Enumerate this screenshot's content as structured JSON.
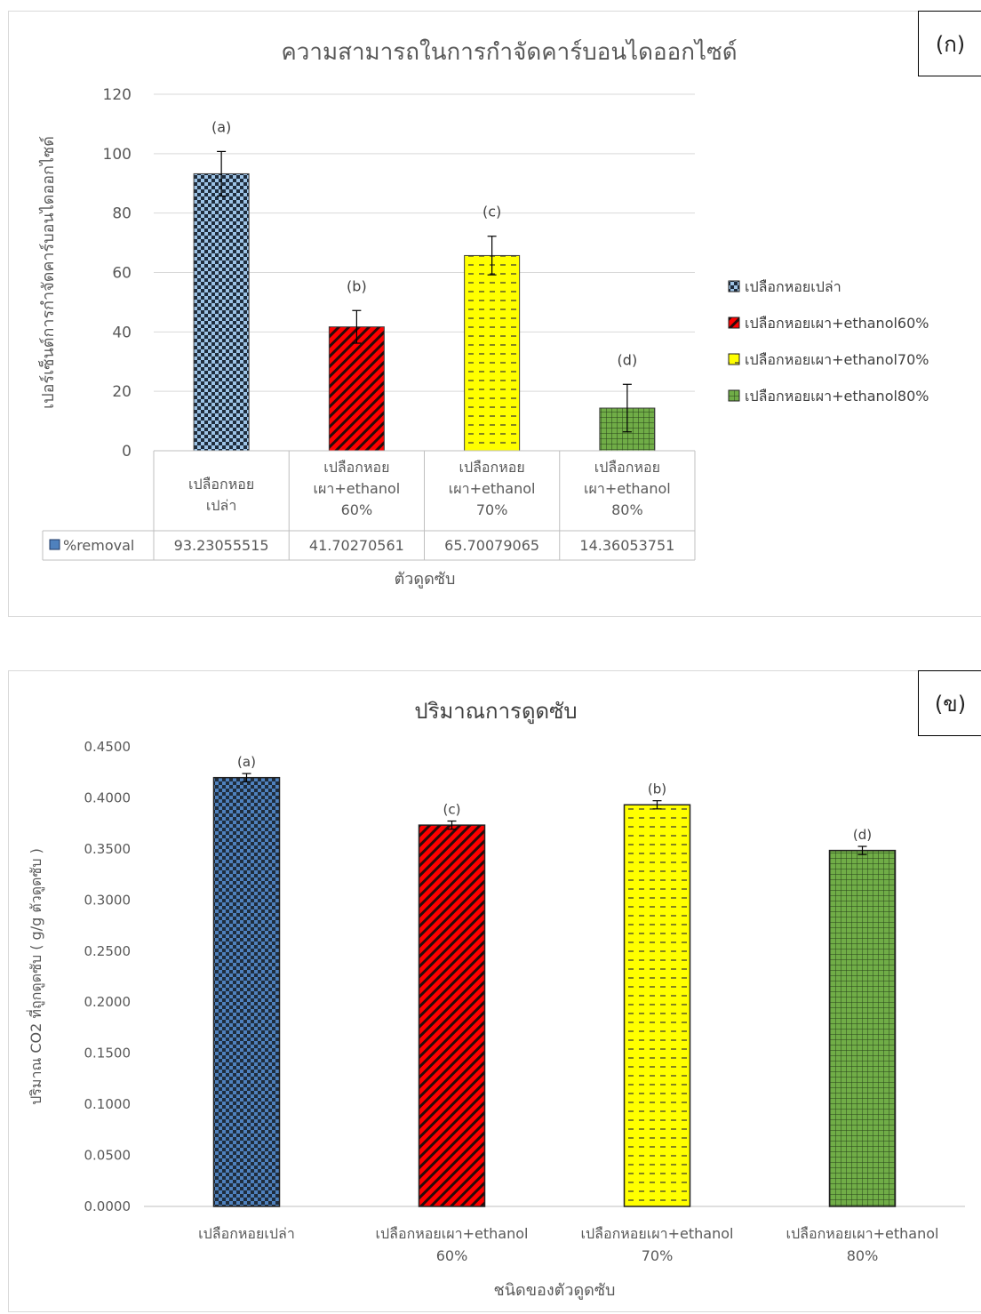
{
  "charts": [
    {
      "panel_label": "(ก)",
      "chart_data": {
        "type": "bar",
        "title": "ความสามารถในการกำจัดคาร์บอนไดออกไซด์",
        "xlabel": "ตัวดูดซับ",
        "ylabel": "เปอร์เซ็นต์การกำจัดคาร์บอนไดออกไซด์",
        "ylim": [
          0,
          120
        ],
        "yticks": [
          "0",
          "20",
          "40",
          "60",
          "80",
          "100",
          "120"
        ],
        "grid": true,
        "legend_position": "right",
        "categories": [
          [
            "เปลือกหอย",
            "เปล่า"
          ],
          [
            "เปลือกหอย",
            "เผา+ethanol",
            "60%"
          ],
          [
            "เปลือกหอย",
            "เผา+ethanol",
            "70%"
          ],
          [
            "เปลือกหอย",
            "เผา+ethanol",
            "80%"
          ]
        ],
        "values": [
          93.23055515,
          41.70270561,
          65.70079065,
          14.36053751
        ],
        "errors": [
          7.5,
          5.5,
          6.5,
          8
        ],
        "annotations": [
          "(a)",
          "(b)",
          "(c)",
          "(d)"
        ],
        "colors": [
          "#9dc3e6",
          "#ff0000",
          "#ffff00",
          "#70ad47"
        ],
        "patterns": [
          "checker",
          "diagonal",
          "dashed",
          "grid"
        ],
        "legend": [
          "เปลือกหอยเปล่า",
          "เปลือกหอยเผา+ethanol60%",
          "เปลือกหอยเผา+ethanol70%",
          "เปลือกหอยเผา+ethanol80%"
        ],
        "data_table": {
          "series_name": "%removal",
          "values": [
            "93.23055515",
            "41.70270561",
            "65.70079065",
            "14.36053751"
          ]
        }
      }
    },
    {
      "panel_label": "(ข)",
      "chart_data": {
        "type": "bar",
        "title": "ปริมาณการดูดซับ",
        "xlabel": "ชนิดของตัวดูดซับ",
        "ylabel": "ปริมาณ CO2 ที่ถูกดูดซับ ( g/g ตัวดูดซับ )",
        "ylim": [
          0,
          0.45
        ],
        "yticks": [
          "0.0000",
          "0.0500",
          "0.1000",
          "0.1500",
          "0.2000",
          "0.2500",
          "0.3000",
          "0.3500",
          "0.4000",
          "0.4500"
        ],
        "grid": false,
        "categories": [
          [
            "เปลือกหอยเปล่า"
          ],
          [
            "เปลือกหอยเผา+ethanol",
            "60%"
          ],
          [
            "เปลือกหอยเผา+ethanol",
            "70%"
          ],
          [
            "เปลือกหอยเผา+ethanol",
            "80%"
          ]
        ],
        "values": [
          0.4198,
          0.3733,
          0.3932,
          0.3485
        ],
        "errors": [
          0.004,
          0.004,
          0.004,
          0.004
        ],
        "annotations": [
          "(a)",
          "(c)",
          "(b)",
          "(d)"
        ],
        "colors": [
          "#4f81bd",
          "#ff0000",
          "#ffff00",
          "#70ad47"
        ],
        "patterns": [
          "checker",
          "diagonal",
          "dashed",
          "grid"
        ]
      }
    }
  ]
}
